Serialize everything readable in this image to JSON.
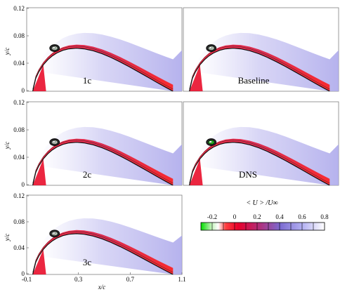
{
  "figure": {
    "panels": [
      {
        "id": "p1c",
        "label": "1c"
      },
      {
        "id": "pbase",
        "label": "Baseline"
      },
      {
        "id": "p2c",
        "label": "2c"
      },
      {
        "id": "pdns",
        "label": "DNS"
      },
      {
        "id": "p3c",
        "label": "3c"
      }
    ],
    "y_axis_label": "y/c",
    "x_axis_label": "x/c",
    "y_ticks": [
      "0.12",
      "0.08",
      "0.04",
      "0"
    ],
    "x_ticks": [
      "-0.1",
      "0.3",
      "0.7",
      "1.1"
    ],
    "colorbar": {
      "title": "< U > /U∞",
      "ticks": [
        "-0.2",
        "0",
        "0.2",
        "0.4",
        "0.6",
        "0.8"
      ],
      "colors": [
        "#00dd00",
        "#ffffff",
        "#ff0000",
        "#b0205a",
        "#7a5fc7",
        "#aeaaf0",
        "#ffffff"
      ]
    }
  },
  "chart_data": {
    "type": "heatmap",
    "title": "",
    "subplots": [
      "1c",
      "Baseline",
      "2c",
      "DNS",
      "3c"
    ],
    "xlabel": "x/c",
    "ylabel": "y/c",
    "xlim": [
      -0.1,
      1.1
    ],
    "ylim": [
      0,
      0.12
    ],
    "xticks": [
      -0.1,
      0.3,
      0.7,
      1.1
    ],
    "yticks": [
      0,
      0.04,
      0.08,
      0.12
    ],
    "colorbar_label": "< U > /U∞",
    "colorbar_range": [
      -0.3,
      0.8
    ],
    "colorbar_ticks": [
      -0.2,
      0,
      0.2,
      0.4,
      0.6,
      0.8
    ]
  }
}
